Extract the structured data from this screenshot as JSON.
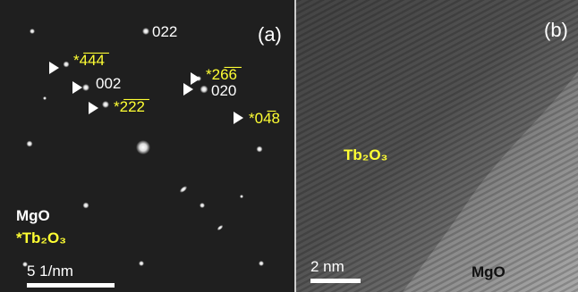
{
  "panel_a": {
    "label": "(a)",
    "spot_labels": [
      "022",
      "*4̅4̅4̅",
      "002",
      "*2̅2̅2̅",
      "*26̅6̅",
      "020",
      "*04̅8"
    ],
    "legend": [
      "MgO",
      "*Tb₂O₃"
    ],
    "scale_bar": "5 1/nm"
  },
  "panel_b": {
    "label": "(b)",
    "phase_labels": [
      "Tb₂O₃",
      "MgO"
    ],
    "scale_bar": "2 nm"
  }
}
